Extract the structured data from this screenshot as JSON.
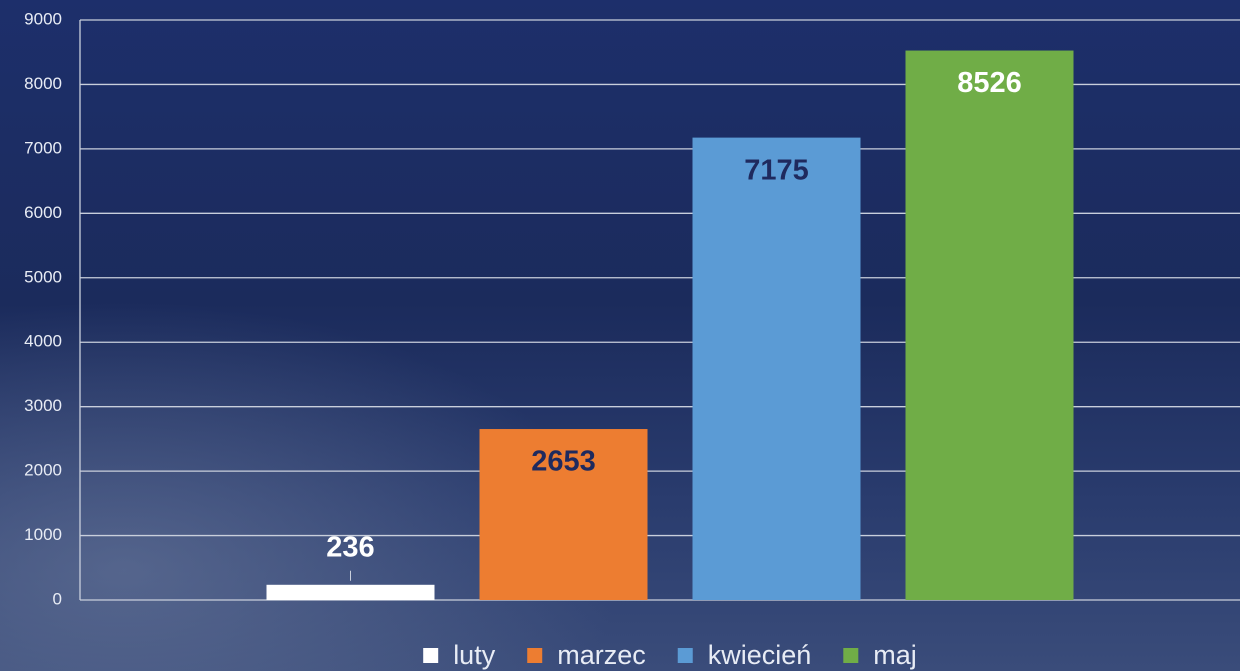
{
  "chart_data": {
    "type": "bar",
    "categories": [
      null
    ],
    "series": [
      {
        "name": "luty",
        "color": "#ffffff",
        "label_color": "#ffffff",
        "values": [
          236
        ]
      },
      {
        "name": "marzec",
        "color": "#ed7d31",
        "label_color": "#1f2a5e",
        "values": [
          2653
        ]
      },
      {
        "name": "kwiecień",
        "color": "#5b9bd5",
        "label_color": "#1f2a5e",
        "values": [
          7175
        ]
      },
      {
        "name": "maj",
        "color": "#70ad47",
        "label_color": "#ffffff",
        "values": [
          8526
        ]
      }
    ],
    "ylim": [
      0,
      9000
    ],
    "yticks": [
      0,
      1000,
      2000,
      3000,
      4000,
      5000,
      6000,
      7000,
      8000,
      9000
    ],
    "grid": true,
    "legend": "bottom"
  }
}
